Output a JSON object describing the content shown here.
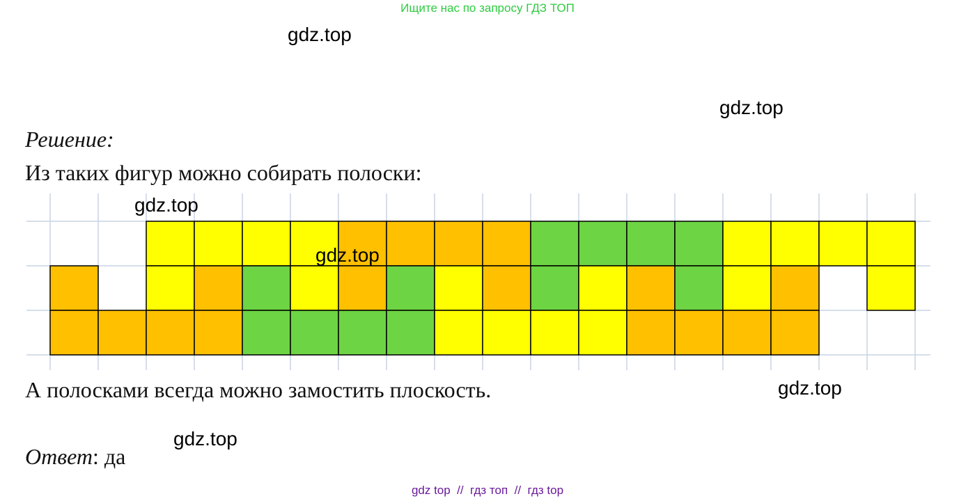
{
  "header": {
    "text": "Ищите нас по запросу ГДЗ ТОП"
  },
  "watermarks": [
    "gdz.top",
    "gdz.top",
    "gdz.top",
    "gdz.top",
    "gdz.top",
    "gdz.top"
  ],
  "solution": {
    "label": "Решение:",
    "text": "Из таких фигур можно собирать полоски:",
    "conclusion": "А полосками всегда можно замостить плоскость."
  },
  "answer": {
    "label": "Ответ",
    "text": ": да"
  },
  "footer": {
    "text": "gdz top  //  гдз топ  //  гдз top"
  }
}
